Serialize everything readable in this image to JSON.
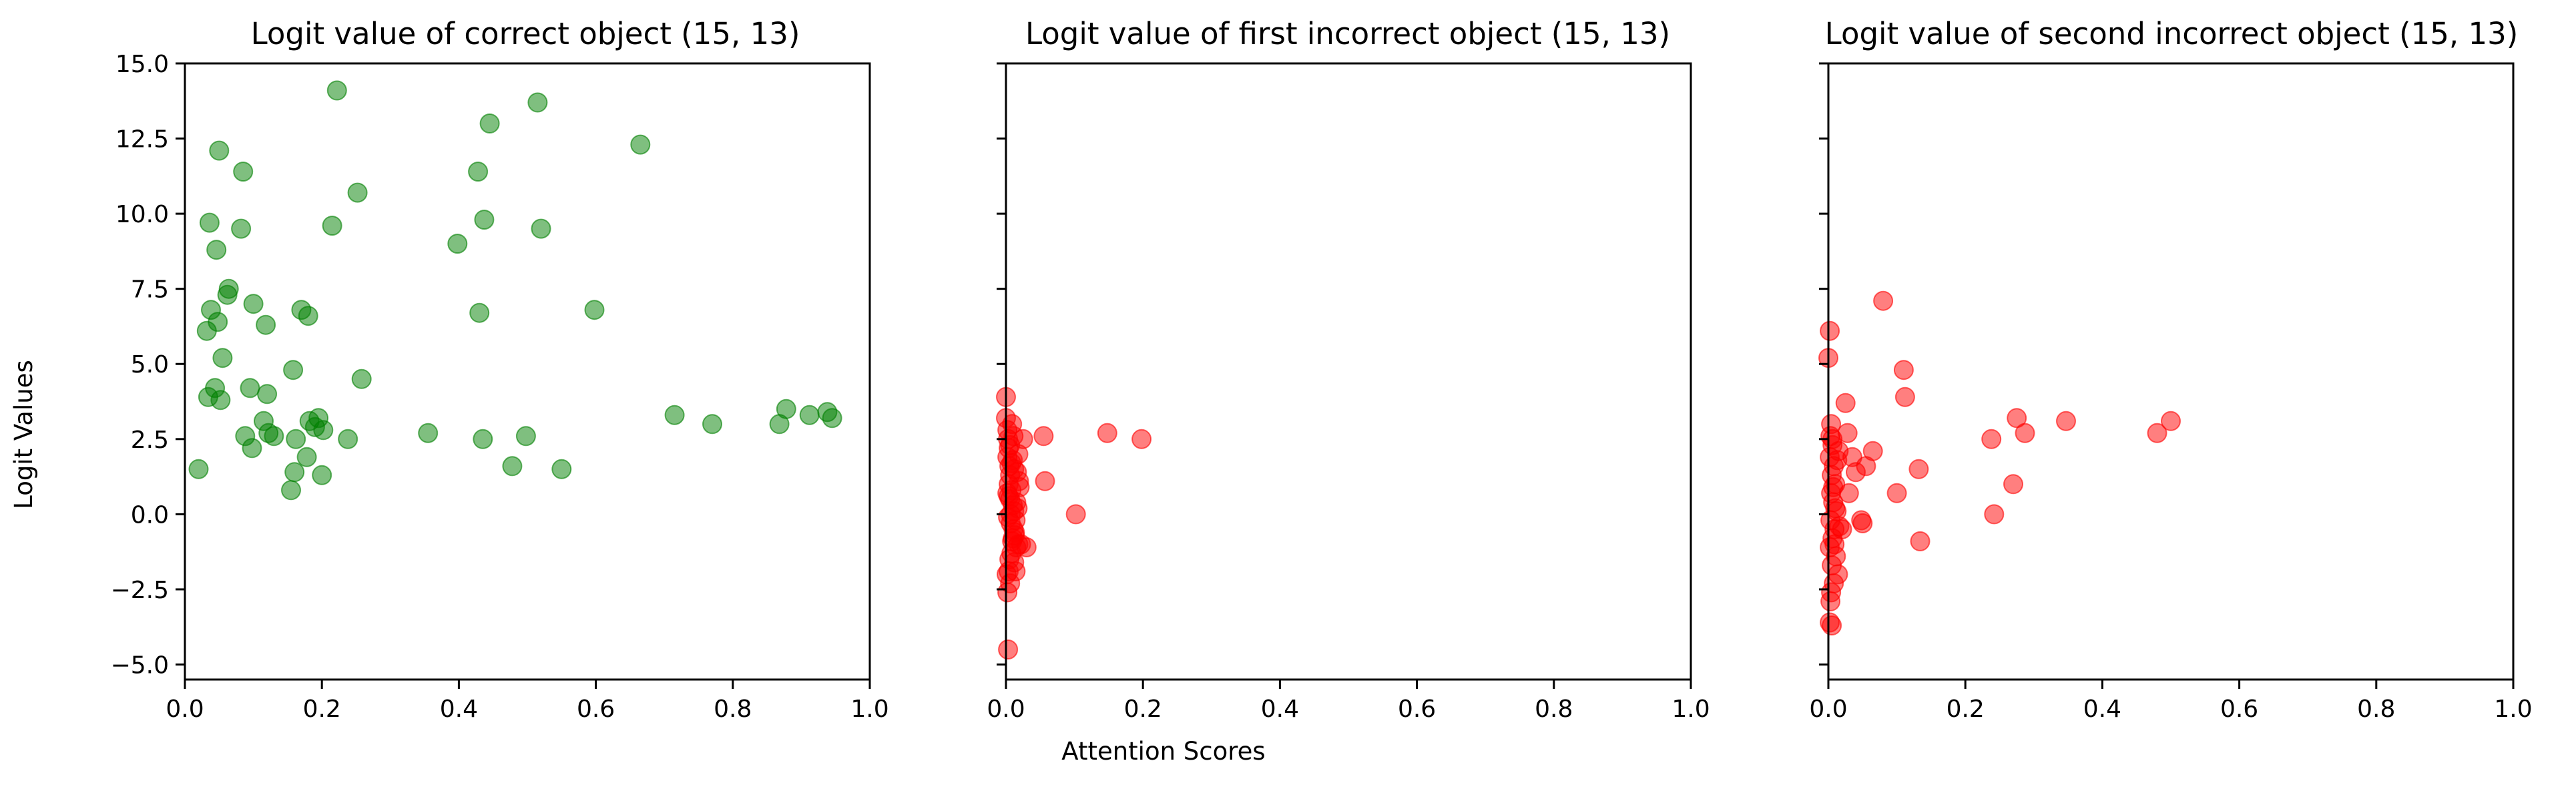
{
  "chart_data": [
    {
      "type": "scatter",
      "title": "Logit value of correct object (15, 13)",
      "xlabel": "",
      "ylabel": "Logit Values",
      "xlim": [
        0.0,
        1.0
      ],
      "ylim": [
        -5.5,
        15.0
      ],
      "x_ticks": [
        "0.0",
        "0.2",
        "0.4",
        "0.6",
        "0.8",
        "1.0"
      ],
      "y_ticks": [
        "−5.0",
        "−2.5",
        "0.0",
        "2.5",
        "5.0",
        "7.5",
        "10.0",
        "12.5",
        "15.0"
      ],
      "color": "#008000",
      "alpha": 0.5,
      "x": [
        0.02,
        0.032,
        0.034,
        0.036,
        0.038,
        0.044,
        0.046,
        0.048,
        0.05,
        0.052,
        0.055,
        0.062,
        0.064,
        0.082,
        0.085,
        0.088,
        0.095,
        0.098,
        0.1,
        0.115,
        0.118,
        0.12,
        0.122,
        0.13,
        0.155,
        0.158,
        0.16,
        0.162,
        0.17,
        0.178,
        0.18,
        0.182,
        0.19,
        0.195,
        0.2,
        0.202,
        0.215,
        0.222,
        0.238,
        0.252,
        0.258,
        0.355,
        0.398,
        0.428,
        0.43,
        0.435,
        0.437,
        0.445,
        0.478,
        0.498,
        0.515,
        0.52,
        0.55,
        0.598,
        0.665,
        0.715,
        0.77,
        0.868,
        0.878,
        0.912,
        0.938,
        0.945
      ],
      "y": [
        1.5,
        6.1,
        3.9,
        9.7,
        6.8,
        4.2,
        8.8,
        6.4,
        12.1,
        3.8,
        5.2,
        7.3,
        7.5,
        9.5,
        11.4,
        2.6,
        4.2,
        2.2,
        7.0,
        3.1,
        6.3,
        4.0,
        2.7,
        2.6,
        0.8,
        4.8,
        1.4,
        2.5,
        6.8,
        1.9,
        6.6,
        3.1,
        2.9,
        3.2,
        1.3,
        2.8,
        9.6,
        14.1,
        2.5,
        10.7,
        4.5,
        2.7,
        9.0,
        11.4,
        6.7,
        2.5,
        9.8,
        13.0,
        1.6,
        2.6,
        13.7,
        9.5,
        1.5,
        6.8,
        12.3,
        3.3,
        3.0,
        3.0,
        3.5,
        3.3,
        3.4,
        3.2
      ]
    },
    {
      "type": "scatter",
      "title": "Logit value of first incorrect object (15, 13)",
      "xlabel": "Attention Scores",
      "ylabel": "",
      "xlim": [
        0.0,
        1.0
      ],
      "ylim": [
        -5.5,
        15.0
      ],
      "x_ticks": [
        "0.0",
        "0.2",
        "0.4",
        "0.6",
        "0.8",
        "1.0"
      ],
      "y_ticks": [],
      "color": "#ff0000",
      "alpha": 0.5,
      "x": [
        0.0,
        0.0,
        0.002,
        0.003,
        0.004,
        0.002,
        0.005,
        0.006,
        0.004,
        0.008,
        0.006,
        0.01,
        0.012,
        0.003,
        0.007,
        0.011,
        0.013,
        0.009,
        0.015,
        0.008,
        0.012,
        0.014,
        0.016,
        0.01,
        0.018,
        0.006,
        0.004,
        0.02,
        0.017,
        0.013,
        0.022,
        0.011,
        0.009,
        0.015,
        0.005,
        0.019,
        0.002,
        0.008,
        0.014,
        0.007,
        0.003,
        0.025,
        0.03,
        0.012,
        0.018,
        0.01,
        0.006,
        0.004,
        0.002,
        0.055,
        0.057,
        0.102,
        0.148,
        0.198,
        0.001
      ],
      "y": [
        3.9,
        3.2,
        2.8,
        2.5,
        2.2,
        1.9,
        1.6,
        1.3,
        1.0,
        0.8,
        0.5,
        0.3,
        0.1,
        -0.1,
        -0.3,
        -0.5,
        -0.7,
        -0.9,
        -1.1,
        -1.3,
        -1.6,
        -1.9,
        1.4,
        1.8,
        2.0,
        -2.3,
        0.6,
        0.9,
        0.2,
        -0.6,
        -1.0,
        2.6,
        3.0,
        0.4,
        -1.5,
        1.1,
        -2.6,
        1.7,
        -0.2,
        0.0,
        -4.5,
        2.5,
        -1.1,
        1.5,
        -1.0,
        -0.8,
        2.3,
        -1.9,
        0.7,
        2.6,
        1.1,
        0.0,
        2.7,
        2.5,
        -2.0
      ]
    },
    {
      "type": "scatter",
      "title": "Logit value of second incorrect object (15, 13)",
      "xlabel": "",
      "ylabel": "",
      "xlim": [
        0.0,
        1.0
      ],
      "ylim": [
        -5.5,
        15.0
      ],
      "x_ticks": [
        "0.0",
        "0.2",
        "0.4",
        "0.6",
        "0.8",
        "1.0"
      ],
      "y_ticks": [],
      "color": "#ff0000",
      "alpha": 0.5,
      "x": [
        0.0,
        0.002,
        0.004,
        0.003,
        0.006,
        0.002,
        0.008,
        0.005,
        0.01,
        0.004,
        0.007,
        0.012,
        0.003,
        0.009,
        0.006,
        0.002,
        0.011,
        0.005,
        0.014,
        0.008,
        0.004,
        0.016,
        0.01,
        0.006,
        0.002,
        0.013,
        0.02,
        0.007,
        0.015,
        0.003,
        0.025,
        0.028,
        0.03,
        0.035,
        0.04,
        0.048,
        0.05,
        0.055,
        0.065,
        0.08,
        0.1,
        0.11,
        0.112,
        0.132,
        0.134,
        0.238,
        0.242,
        0.27,
        0.275,
        0.287,
        0.347,
        0.48,
        0.5,
        0.005,
        0.009
      ],
      "y": [
        5.2,
        6.1,
        3.0,
        2.6,
        2.3,
        1.9,
        1.6,
        1.3,
        1.0,
        0.7,
        0.4,
        0.1,
        -0.2,
        -0.5,
        -0.8,
        -1.1,
        -1.4,
        -1.7,
        -2.0,
        -2.3,
        -2.6,
        -0.4,
        0.2,
        2.5,
        -3.6,
        1.8,
        -0.5,
        0.9,
        2.1,
        -2.9,
        3.7,
        2.7,
        0.7,
        1.9,
        1.4,
        -0.2,
        -0.3,
        1.6,
        2.1,
        7.1,
        0.7,
        4.8,
        3.9,
        1.5,
        -0.9,
        2.5,
        0.0,
        1.0,
        3.2,
        2.7,
        3.1,
        2.7,
        3.1,
        -3.7,
        -1.0
      ]
    }
  ]
}
